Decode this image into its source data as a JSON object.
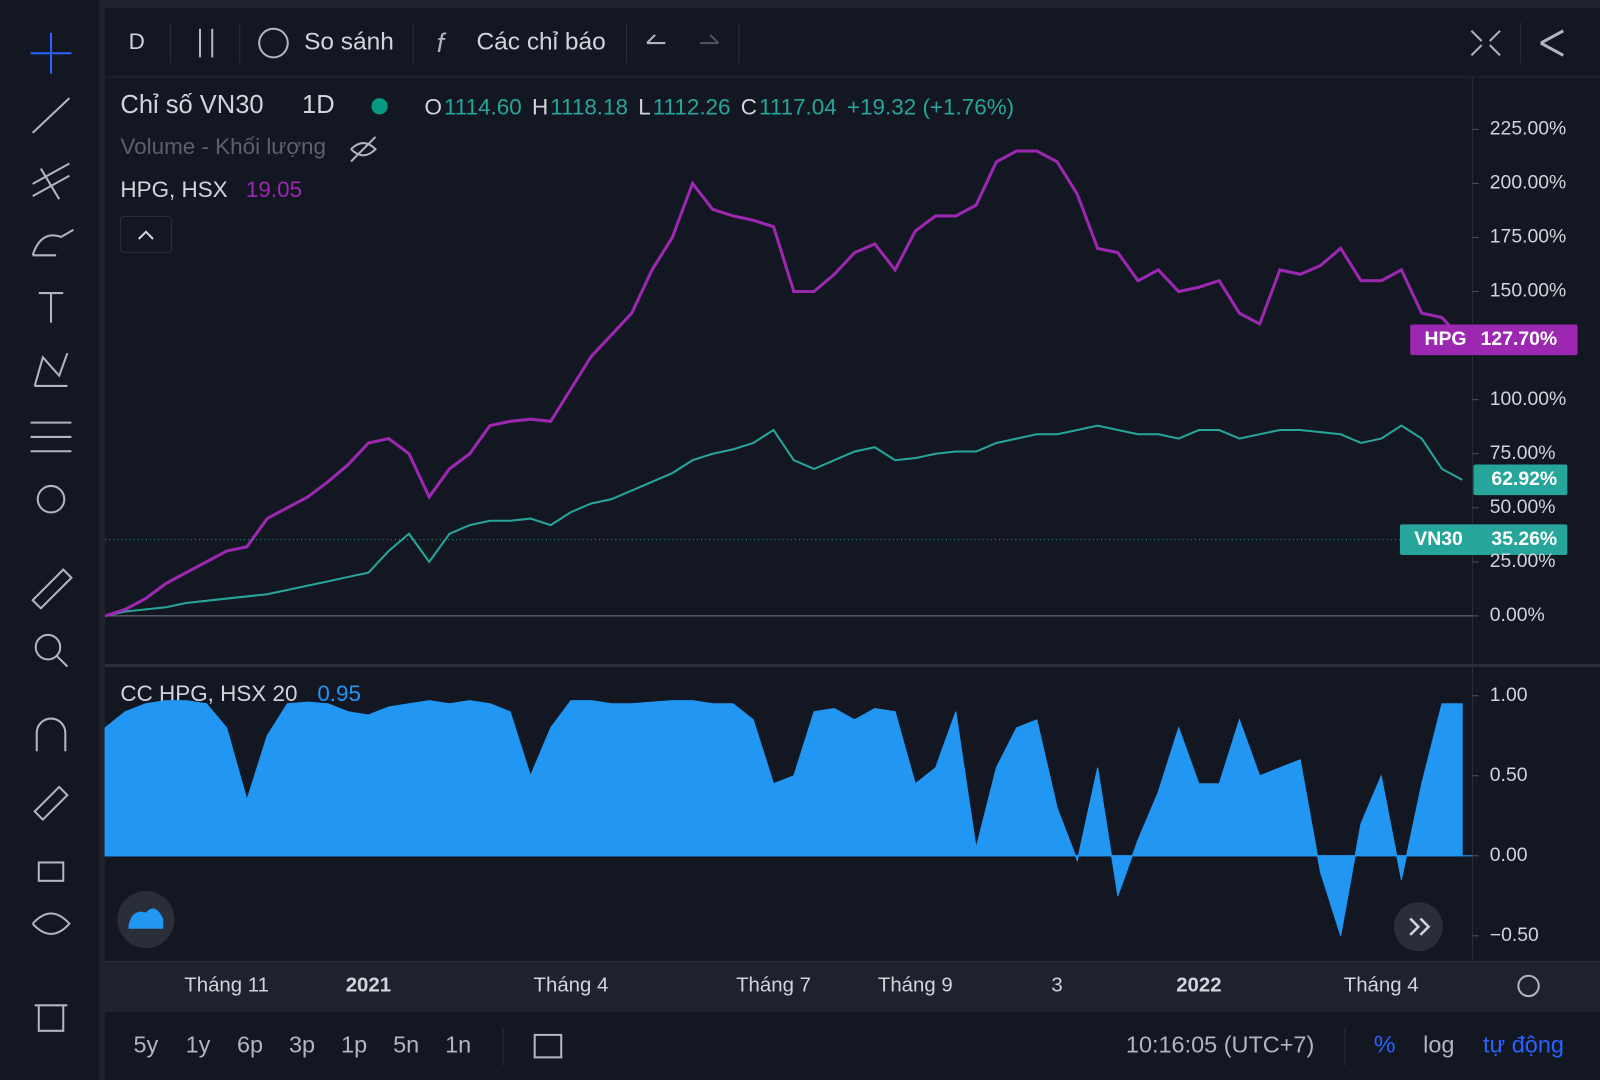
{
  "toolbar": {
    "interval": "D",
    "compare": "So sánh",
    "indicators": "Các chỉ báo"
  },
  "legend": {
    "symbol": "Chỉ số VN30",
    "interval": "1D",
    "ohlc": [
      {
        "key": "O",
        "value": "1114.60"
      },
      {
        "key": "H",
        "value": "1118.18"
      },
      {
        "key": "L",
        "value": "1112.26"
      },
      {
        "key": "C",
        "value": "1117.04"
      }
    ],
    "change": "+19.32 (+1.76%)",
    "volume": "Volume - Khối lượng",
    "compare_symbol": "HPG, HSX",
    "compare_value": "19.05"
  },
  "chart_data": [
    {
      "type": "line",
      "categories": [
        null,
        null,
        null,
        null,
        null,
        null,
        "Tháng 11",
        null,
        null,
        null,
        null,
        null,
        null,
        "2021",
        null,
        null,
        null,
        null,
        null,
        null,
        null,
        null,
        null,
        "Tháng 4",
        null,
        null,
        null,
        null,
        null,
        null,
        null,
        null,
        null,
        "Tháng 7",
        null,
        null,
        null,
        null,
        null,
        null,
        "Tháng 9",
        null,
        null,
        null,
        null,
        null,
        null,
        "3",
        null,
        null,
        null,
        null,
        null,
        null,
        "2022",
        null,
        null,
        null,
        null,
        null,
        null,
        null,
        null,
        "Tháng 4",
        null,
        null,
        null,
        null
      ],
      "series": [
        {
          "name": "HPG",
          "color": "#9c27b0",
          "values": [
            0,
            3,
            8,
            15,
            20,
            25,
            30,
            32,
            45,
            50,
            55,
            62,
            70,
            80,
            82,
            75,
            55,
            68,
            75,
            88,
            90,
            91,
            90,
            105,
            120,
            130,
            140,
            160,
            175,
            200,
            188,
            185,
            183,
            180,
            150,
            150,
            158,
            168,
            172,
            160,
            178,
            185,
            185,
            190,
            210,
            215,
            215,
            210,
            195,
            170,
            168,
            155,
            160,
            150,
            152,
            155,
            140,
            135,
            160,
            158,
            162,
            170,
            155,
            155,
            160,
            140,
            138,
            127.7
          ]
        },
        {
          "name": "VN30",
          "color": "#26a69a",
          "values": [
            0,
            2,
            3,
            4,
            6,
            7,
            8,
            9,
            10,
            12,
            14,
            16,
            18,
            20,
            30,
            38,
            25,
            38,
            42,
            44,
            44,
            45,
            42,
            48,
            52,
            54,
            58,
            62,
            66,
            72,
            75,
            77,
            80,
            86,
            72,
            68,
            72,
            76,
            78,
            72,
            73,
            75,
            76,
            76,
            80,
            82,
            84,
            84,
            86,
            88,
            86,
            84,
            84,
            82,
            86,
            86,
            82,
            84,
            86,
            86,
            85,
            84,
            80,
            82,
            88,
            82,
            68,
            62.92
          ]
        }
      ],
      "price_lines": [
        {
          "value": 127.7,
          "label": "127.70%"
        },
        {
          "value": 62.92,
          "label": "62.92%"
        },
        {
          "value": 35.26,
          "label": "35.26%"
        }
      ],
      "ylim": [
        -22,
        247
      ],
      "yticks": [
        {
          "value": 0,
          "label": "0.00%"
        },
        {
          "value": 25,
          "label": "25.00%"
        },
        {
          "value": 50,
          "label": "50.00%"
        },
        {
          "value": 75,
          "label": "75.00%"
        },
        {
          "value": 100,
          "label": "100.00%"
        },
        {
          "value": 150,
          "label": "150.00%"
        },
        {
          "value": 175,
          "label": "175.00%"
        },
        {
          "value": 200,
          "label": "200.00%"
        },
        {
          "value": 225,
          "label": "225.00%"
        }
      ],
      "grid": false
    },
    {
      "type": "area",
      "title": "CC HPG, HSX 20",
      "last_value": 0.95,
      "color": "#2196f3",
      "values": [
        0.8,
        0.9,
        0.95,
        0.97,
        0.97,
        0.95,
        0.8,
        0.35,
        0.75,
        0.95,
        0.96,
        0.95,
        0.9,
        0.88,
        0.93,
        0.95,
        0.97,
        0.95,
        0.97,
        0.95,
        0.9,
        0.5,
        0.8,
        0.97,
        0.97,
        0.95,
        0.95,
        0.96,
        0.97,
        0.97,
        0.95,
        0.95,
        0.85,
        0.45,
        0.5,
        0.9,
        0.92,
        0.85,
        0.92,
        0.9,
        0.45,
        0.55,
        0.9,
        0.05,
        0.55,
        0.8,
        0.85,
        0.3,
        -0.03,
        0.55,
        -0.25,
        0.1,
        0.4,
        0.8,
        0.45,
        0.45,
        0.85,
        0.5,
        0.55,
        0.6,
        -0.1,
        -0.5,
        0.2,
        0.5,
        -0.15,
        0.45,
        0.95,
        0.95
      ],
      "ylim": [
        -0.66,
        1.17
      ],
      "yticks": [
        {
          "value": 1,
          "label": "1.00"
        },
        {
          "value": 0.5,
          "label": "0.50"
        },
        {
          "value": 0,
          "label": "0.00"
        },
        {
          "value": -0.5,
          "label": "−0.50"
        }
      ]
    }
  ],
  "bottom_bar": {
    "ranges": [
      "5y",
      "1y",
      "6p",
      "3p",
      "1p",
      "5n",
      "1n"
    ],
    "time": "10:16:05 (UTC+7)",
    "percent": "%",
    "log": "log",
    "auto": "tự động"
  }
}
